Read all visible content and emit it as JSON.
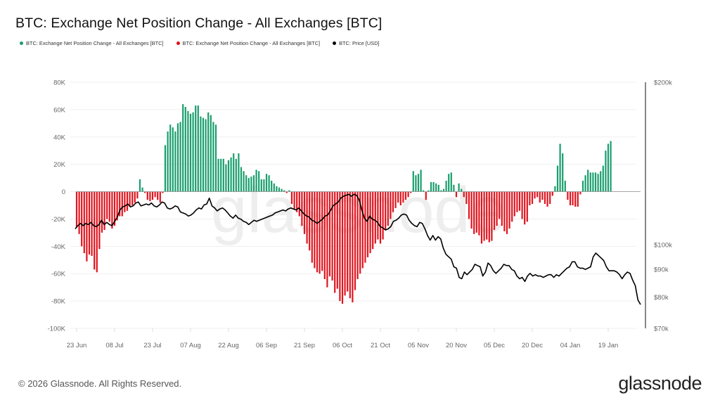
{
  "title": "BTC: Exchange Net Position Change - All Exchanges [BTC]",
  "legend": [
    {
      "label": "BTC: Exchange Net Position Change - All Exchanges [BTC]",
      "color": "#1a9e6e"
    },
    {
      "label": "BTC: Exchange Net Position Change - All Exchanges [BTC]",
      "color": "#e0141e"
    },
    {
      "label": "BTC: Price [USD]",
      "color": "#000000"
    }
  ],
  "footer": {
    "copyright": "© 2026 Glassnode. All Rights Reserved.",
    "brand": "glassnode",
    "watermark": "glassnode"
  },
  "chart_data": {
    "type": "bar",
    "title": "BTC: Exchange Net Position Change - All Exchanges [BTC]",
    "xlabel": "",
    "ylabel": "",
    "ylim": [
      -100000,
      80000
    ],
    "y2lim": [
      70000,
      200000
    ],
    "y2_scale": "log",
    "yticks": [
      "80K",
      "60K",
      "40K",
      "20K",
      "0",
      "-20K",
      "-40K",
      "-60K",
      "-80K",
      "-100K"
    ],
    "ytick_values": [
      80000,
      60000,
      40000,
      20000,
      0,
      -20000,
      -40000,
      -60000,
      -80000,
      -100000
    ],
    "y2ticks": [
      "$200k",
      "$100k",
      "$90k",
      "$80k",
      "$70k"
    ],
    "y2tick_values": [
      200000,
      100000,
      90000,
      80000,
      70000
    ],
    "xticks": [
      "23 Jun",
      "08 Jul",
      "23 Jul",
      "07 Aug",
      "22 Aug",
      "06 Sep",
      "21 Sep",
      "06 Oct",
      "21 Oct",
      "05 Nov",
      "20 Nov",
      "05 Dec",
      "20 Dec",
      "04 Jan",
      "19 Jan"
    ],
    "xtick_day_index": [
      0,
      15,
      30,
      45,
      60,
      75,
      90,
      105,
      120,
      135,
      150,
      165,
      180,
      195,
      210
    ],
    "grid": true,
    "legend_position": "top-left",
    "positive_color": "#1a9e6e",
    "negative_color": "#e0141e",
    "price_color": "#000000",
    "series": [
      {
        "name": "BTC: Exchange Net Position Change - All Exchanges [BTC]",
        "kind": "bar",
        "values": [
          -26000,
          -31000,
          -40000,
          -45000,
          -51000,
          -46000,
          -47000,
          -57000,
          -59000,
          -42000,
          -30000,
          -28000,
          -20000,
          -22000,
          -27000,
          -25000,
          -21000,
          -18000,
          -18000,
          -15000,
          -14000,
          -11000,
          -10000,
          -8000,
          -5000,
          9000,
          3000,
          -1000,
          -6000,
          -7000,
          -6000,
          -4000,
          -6000,
          -8000,
          -1000,
          34000,
          44000,
          49000,
          47000,
          44000,
          50000,
          51000,
          64000,
          62000,
          59000,
          57000,
          58000,
          63000,
          63000,
          55000,
          54000,
          53000,
          58000,
          56000,
          51000,
          49000,
          24000,
          24000,
          24000,
          20000,
          23000,
          25000,
          28000,
          24000,
          28000,
          18000,
          15000,
          12000,
          10000,
          11000,
          12000,
          16000,
          15000,
          9000,
          9000,
          13000,
          12000,
          8000,
          6000,
          4000,
          3000,
          2000,
          1000,
          -1000,
          1000,
          -9000,
          -13000,
          -15000,
          -18000,
          -25000,
          -31000,
          -38000,
          -43000,
          -52000,
          -56000,
          -59000,
          -60000,
          -58000,
          -64000,
          -70000,
          -62000,
          -65000,
          -74000,
          -71000,
          -80000,
          -82000,
          -76000,
          -73000,
          -78000,
          -81000,
          -72000,
          -64000,
          -60000,
          -56000,
          -52000,
          -48000,
          -45000,
          -42000,
          -38000,
          -35000,
          -38000,
          -35000,
          -28000,
          -25000,
          -20000,
          -15000,
          -12000,
          -8000,
          -10000,
          -8000,
          -6000,
          -4000,
          -1000,
          15000,
          12000,
          13000,
          16000,
          1000,
          -6000,
          1000,
          7000,
          7000,
          6000,
          5000,
          1000,
          2000,
          8000,
          13000,
          14000,
          5000,
          -4000,
          6000,
          2000,
          -4000,
          -9000,
          -20000,
          -27000,
          -31000,
          -30000,
          -32000,
          -38000,
          -36000,
          -35000,
          -37000,
          -36000,
          -28000,
          -25000,
          -20000,
          -25000,
          -29000,
          -31000,
          -27000,
          -22000,
          -18000,
          -15000,
          -14000,
          -20000,
          -24000,
          -22000,
          -10000,
          -9000,
          -5000,
          -4000,
          -8000,
          -6000,
          -9000,
          -11000,
          -9000,
          -3000,
          4000,
          19000,
          35000,
          28000,
          8000,
          -6000,
          -10000,
          -10000,
          -11000,
          -11000,
          -2000,
          8000,
          12000,
          16000,
          14000,
          14000,
          14000,
          13000,
          15000,
          19000,
          30000,
          35000,
          37000
        ]
      },
      {
        "name": "BTC: Price [USD]",
        "kind": "line",
        "axis": "right",
        "values": [
          107000,
          108500,
          109500,
          108500,
          109500,
          109000,
          110000,
          108500,
          108000,
          109000,
          111000,
          109000,
          110000,
          109000,
          108500,
          110500,
          112500,
          116000,
          117500,
          118000,
          119000,
          117500,
          118000,
          119500,
          120000,
          118000,
          118500,
          119000,
          118500,
          119500,
          118000,
          117500,
          118500,
          120000,
          119500,
          117000,
          116500,
          117000,
          118000,
          117500,
          115000,
          114500,
          114000,
          113000,
          113500,
          114500,
          116000,
          117000,
          116500,
          118500,
          119000,
          122000,
          118000,
          117000,
          115500,
          116500,
          117000,
          116000,
          114500,
          113000,
          112000,
          113500,
          112000,
          111500,
          110500,
          110000,
          109000,
          110000,
          111000,
          110500,
          111000,
          111500,
          112000,
          112500,
          113000,
          113500,
          114500,
          115000,
          115500,
          116000,
          115500,
          116500,
          117000,
          116500,
          116000,
          117000,
          115500,
          114000,
          113000,
          112500,
          111000,
          110500,
          109500,
          110500,
          111500,
          113000,
          113500,
          115500,
          118000,
          119000,
          120000,
          122000,
          123000,
          123500,
          124000,
          123000,
          124000,
          123500,
          121000,
          116000,
          112000,
          110500,
          113000,
          111500,
          111000,
          110000,
          108000,
          107500,
          106500,
          107000,
          108000,
          110500,
          111000,
          112000,
          113500,
          114000,
          113500,
          111000,
          109500,
          108500,
          108000,
          110000,
          109500,
          107000,
          104000,
          102000,
          104000,
          102000,
          103500,
          102500,
          98500,
          96000,
          95000,
          94000,
          91000,
          90500,
          87000,
          86500,
          89000,
          88000,
          89000,
          90000,
          92000,
          91500,
          91000,
          87500,
          89000,
          92500,
          91500,
          89500,
          88500,
          89500,
          90500,
          92000,
          91500,
          91500,
          90000,
          89500,
          87500,
          86500,
          87000,
          85500,
          87500,
          88500,
          87500,
          88000,
          87500,
          87500,
          87000,
          87500,
          88000,
          88000,
          87000,
          88000,
          87500,
          88500,
          89500,
          90500,
          91000,
          93000,
          93000,
          91000,
          90500,
          90500,
          90000,
          90500,
          91000,
          95000,
          96500,
          95500,
          94500,
          93500,
          91000,
          89500,
          89500,
          89500,
          89000,
          88000,
          86500,
          88000,
          89000,
          88500,
          86000,
          84000,
          79000,
          77500
        ]
      }
    ]
  }
}
